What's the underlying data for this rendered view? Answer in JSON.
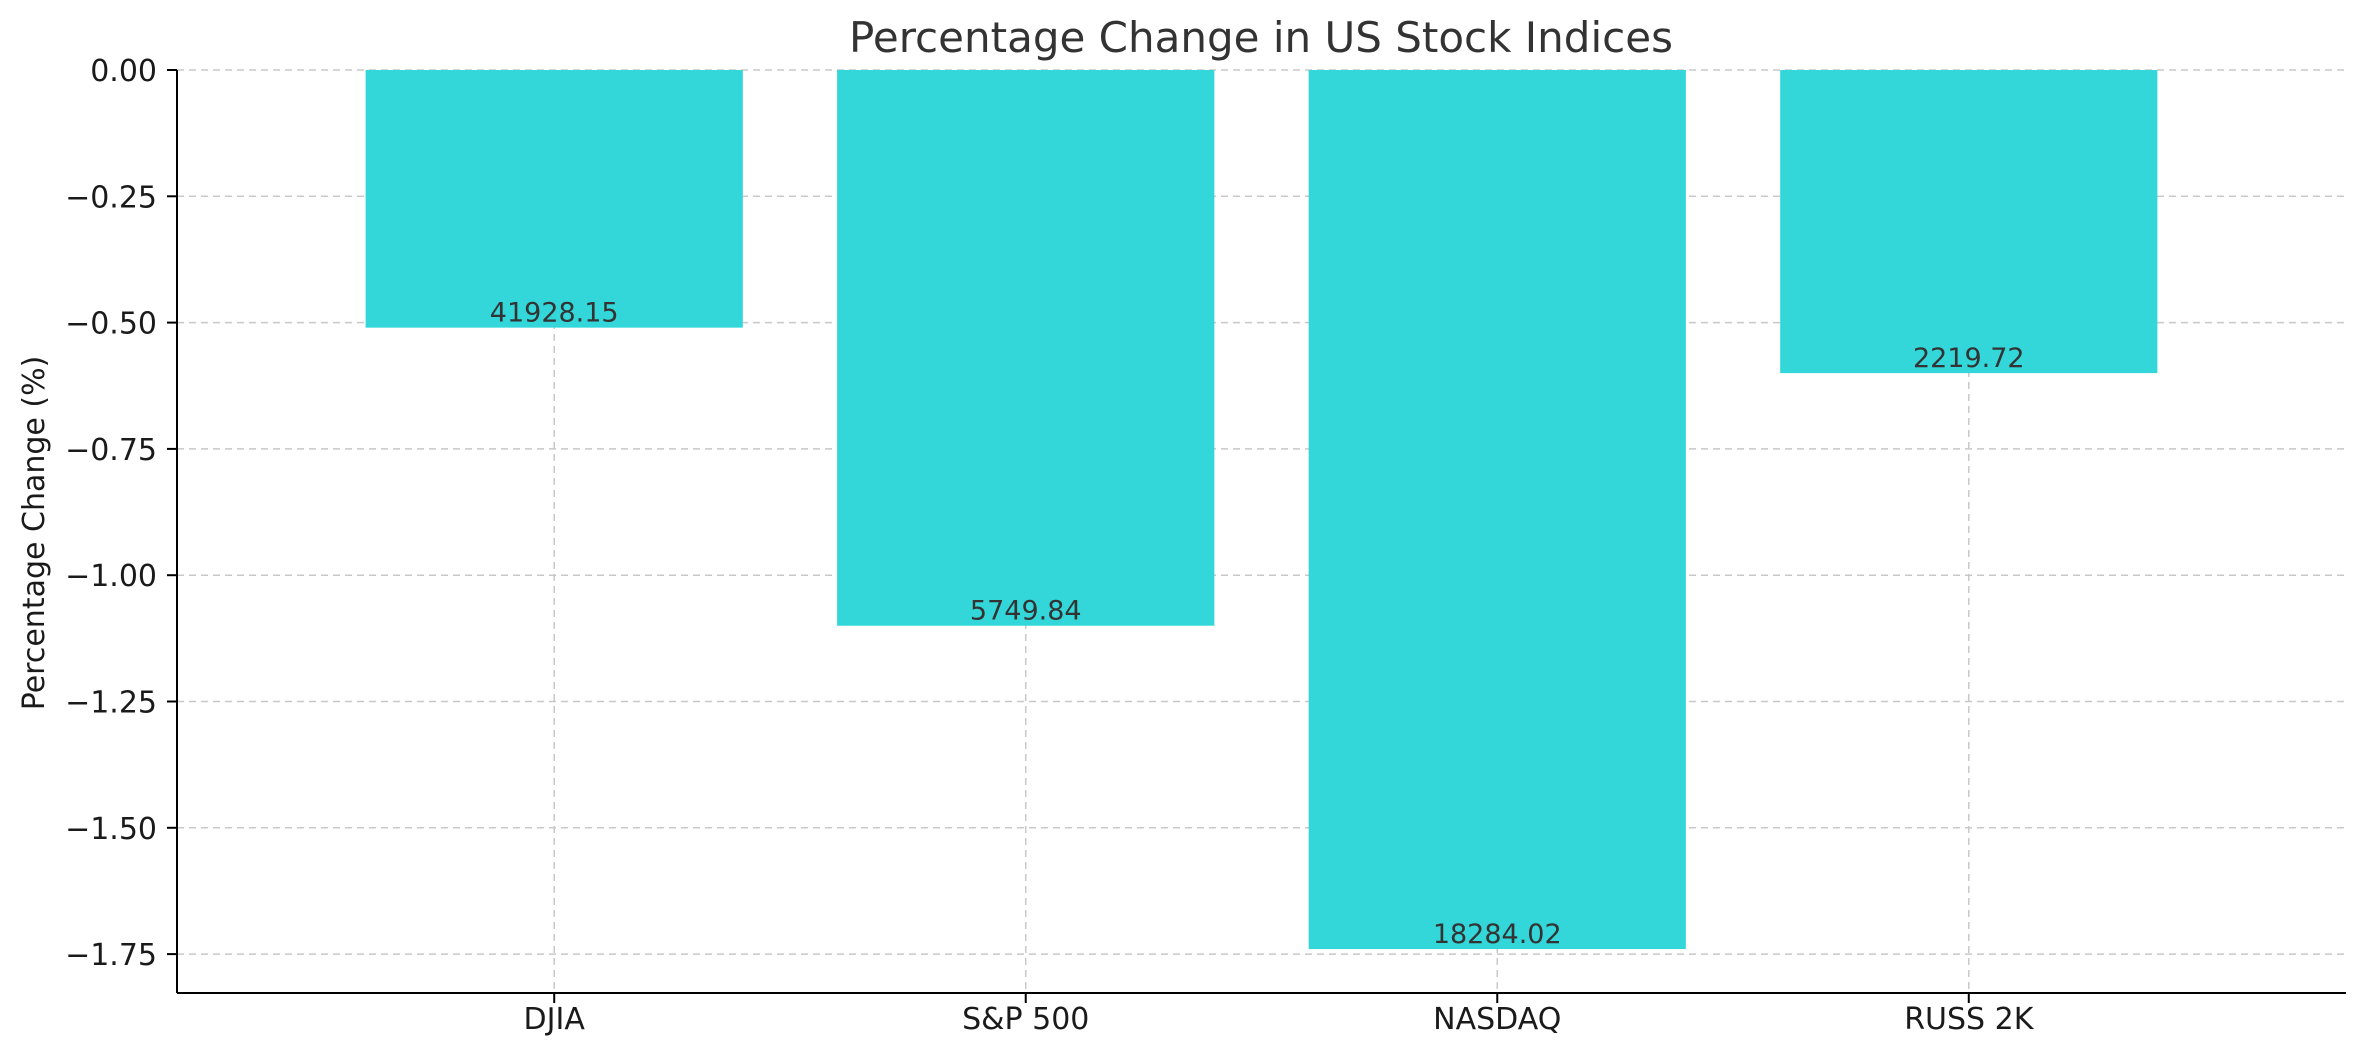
{
  "chart_data": {
    "type": "bar",
    "title": "Percentage Change in US Stock Indices",
    "xlabel": "",
    "ylabel": "Percentage Change (%)",
    "categories": [
      "DJIA",
      "S&P 500",
      "NASDAQ",
      "RUSS 2K"
    ],
    "values": [
      -0.51,
      -1.1,
      -1.74,
      -0.6
    ],
    "bar_labels": [
      "41928.15",
      "5749.84",
      "18284.02",
      "2219.72"
    ],
    "yticks": [
      0.0,
      -0.25,
      -0.5,
      -0.75,
      -1.0,
      -1.25,
      -1.5,
      -1.75
    ],
    "ytick_labels": [
      "0.00",
      "−0.25",
      "−0.50",
      "−0.75",
      "−1.00",
      "−1.25",
      "−1.50",
      "−1.75"
    ],
    "ylim": [
      -1.827,
      0.0
    ],
    "grid": true,
    "colors": {
      "bar": "#33d6d9",
      "grid": "#c8c8c8",
      "axis": "#000000"
    }
  }
}
